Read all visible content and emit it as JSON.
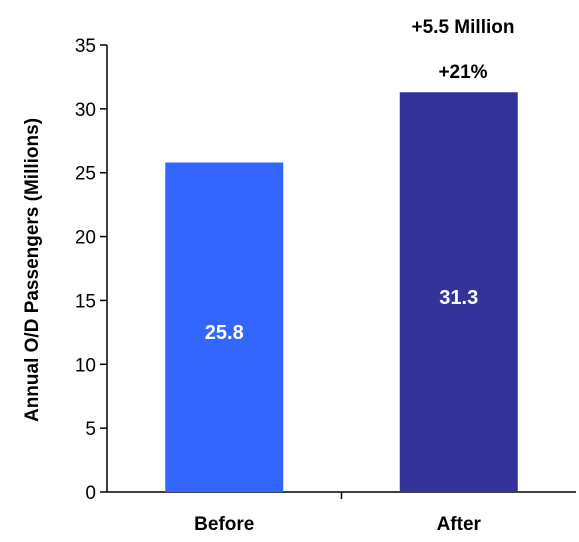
{
  "chart_data": {
    "type": "bar",
    "categories": [
      "Before",
      "After"
    ],
    "values": [
      25.8,
      31.3
    ],
    "value_labels": [
      "25.8",
      "31.3"
    ],
    "colors": [
      "#3366ff",
      "#333399"
    ],
    "ylabel": "Annual O/D Passengers (Millions)",
    "ylim": [
      0,
      35
    ],
    "yticks": [
      0,
      5,
      10,
      15,
      20,
      25,
      30,
      35
    ],
    "grid": false,
    "annotations": [
      "+5.5 Million",
      "+21%"
    ]
  }
}
